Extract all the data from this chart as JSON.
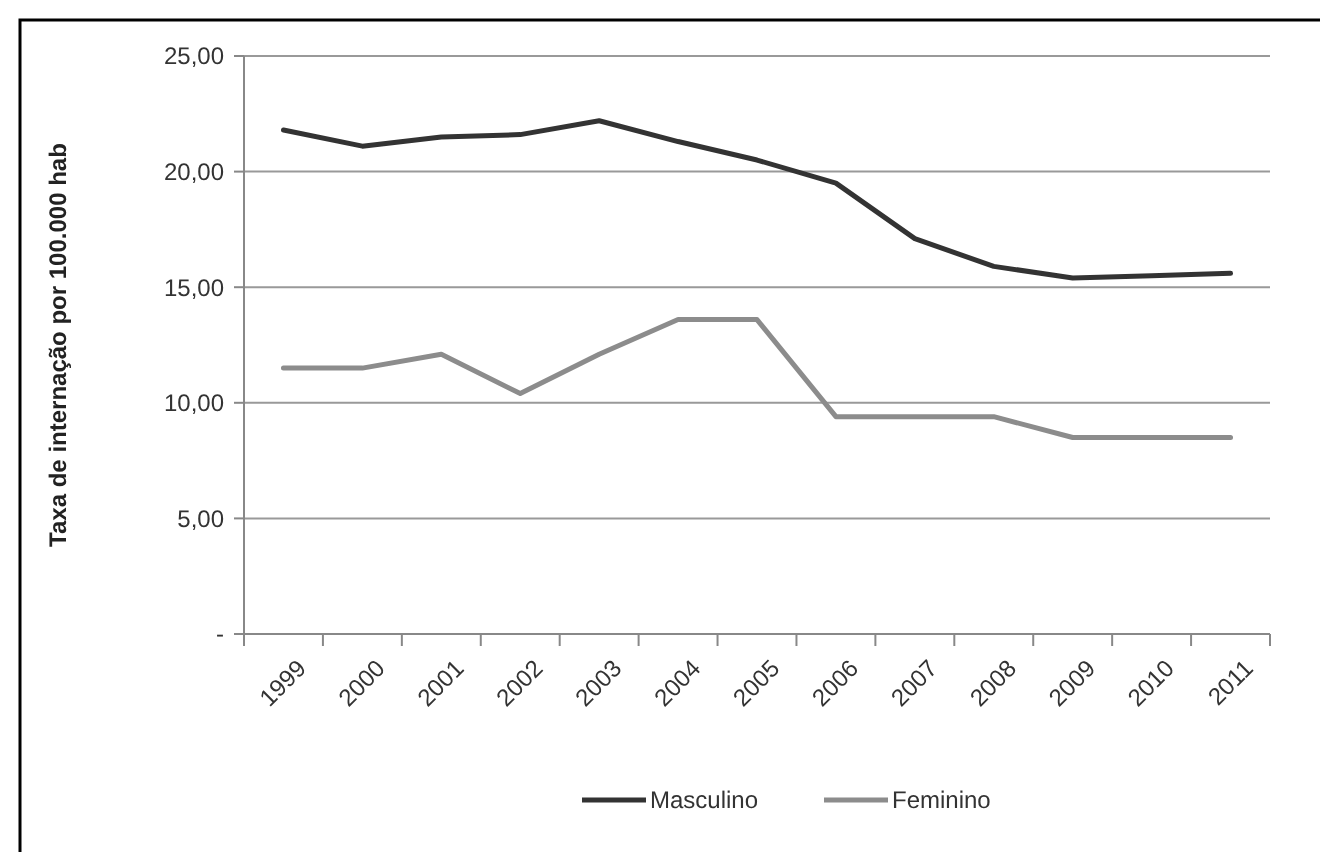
{
  "chart_data": {
    "type": "line",
    "ylabel": "Taxa de internação por 100.000 hab",
    "categories": [
      "1999",
      "2000",
      "2001",
      "2002",
      "2003",
      "2004",
      "2005",
      "2006",
      "2007",
      "2008",
      "2009",
      "2010",
      "2011"
    ],
    "series": [
      {
        "name": "Masculino",
        "color": "#333333",
        "values": [
          21.8,
          21.1,
          21.5,
          21.6,
          22.2,
          21.3,
          20.5,
          19.5,
          17.1,
          15.9,
          15.4,
          15.5,
          15.6
        ]
      },
      {
        "name": "Feminino",
        "color": "#8c8c8c",
        "values": [
          11.5,
          11.5,
          12.1,
          10.4,
          12.1,
          13.6,
          13.6,
          9.4,
          9.4,
          9.4,
          8.5,
          8.5,
          8.5
        ]
      }
    ],
    "ylim": [
      0,
      25
    ],
    "yticks": [
      {
        "value": 0,
        "label": "-"
      },
      {
        "value": 5,
        "label": "5,00"
      },
      {
        "value": 10,
        "label": "10,00"
      },
      {
        "value": 15,
        "label": "15,00"
      },
      {
        "value": 20,
        "label": "20,00"
      },
      {
        "value": 25,
        "label": "25,00"
      }
    ],
    "grid": "y",
    "legend": "bottom",
    "marker": "none",
    "line_style": "solid"
  }
}
